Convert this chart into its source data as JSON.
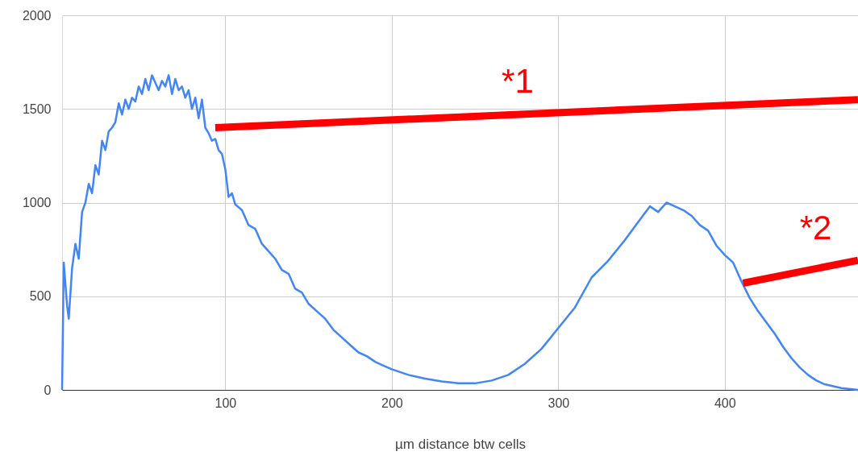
{
  "chart_data": {
    "type": "line",
    "xlabel": "µm distance btw cells",
    "x": [
      2,
      3,
      5,
      6,
      8,
      10,
      12,
      14,
      16,
      18,
      20,
      22,
      24,
      26,
      28,
      30,
      32,
      34,
      36,
      38,
      40,
      42,
      44,
      46,
      48,
      50,
      52,
      54,
      56,
      58,
      60,
      62,
      64,
      66,
      68,
      70,
      72,
      74,
      76,
      78,
      80,
      82,
      84,
      86,
      88,
      90,
      92,
      94,
      96,
      98,
      100,
      102,
      104,
      106,
      110,
      114,
      118,
      122,
      126,
      130,
      134,
      138,
      142,
      146,
      150,
      155,
      160,
      165,
      170,
      175,
      180,
      185,
      190,
      195,
      200,
      210,
      220,
      230,
      240,
      250,
      260,
      270,
      280,
      290,
      300,
      310,
      320,
      330,
      340,
      350,
      355,
      360,
      365,
      370,
      375,
      380,
      385,
      390,
      395,
      400,
      405,
      410,
      415,
      420,
      425,
      430,
      435,
      440,
      445,
      450,
      455,
      460,
      470,
      480
    ],
    "series": [
      {
        "color": "#4285f4",
        "values": [
          0,
          680,
          450,
          380,
          650,
          780,
          700,
          950,
          1000,
          1100,
          1050,
          1200,
          1150,
          1330,
          1280,
          1380,
          1400,
          1430,
          1530,
          1470,
          1550,
          1500,
          1560,
          1540,
          1620,
          1580,
          1660,
          1600,
          1680,
          1640,
          1600,
          1650,
          1620,
          1680,
          1580,
          1660,
          1600,
          1620,
          1560,
          1600,
          1500,
          1560,
          1450,
          1550,
          1400,
          1370,
          1330,
          1340,
          1280,
          1260,
          1180,
          1030,
          1050,
          990,
          960,
          880,
          860,
          780,
          740,
          700,
          640,
          620,
          540,
          520,
          460,
          420,
          380,
          320,
          280,
          240,
          200,
          180,
          150,
          130,
          110,
          80,
          60,
          45,
          35,
          35,
          50,
          80,
          140,
          220,
          330,
          440,
          600,
          690,
          800,
          920,
          980,
          950,
          1000,
          980,
          960,
          930,
          880,
          850,
          770,
          720,
          680,
          580,
          490,
          420,
          360,
          300,
          230,
          170,
          120,
          80,
          50,
          30,
          10,
          0
        ]
      },
      {
        "color": "#ff0000",
        "x": [
          94,
          480
        ],
        "values": [
          1400,
          1550
        ]
      },
      {
        "color": "#ff0000",
        "x": [
          411,
          480
        ],
        "values": [
          570,
          692
        ]
      }
    ],
    "xlim": [
      2,
      480
    ],
    "ylim": [
      0,
      2000
    ],
    "xticks": [
      100,
      200,
      300,
      400
    ],
    "yticks": [
      0,
      500,
      {
        "value": 1000,
        "label": "1000"
      },
      {
        "value": 1500,
        "label": "1500"
      },
      {
        "value": 2000,
        "label": "2000"
      }
    ],
    "grid": true,
    "annotations": [
      "*1",
      "*2"
    ]
  }
}
